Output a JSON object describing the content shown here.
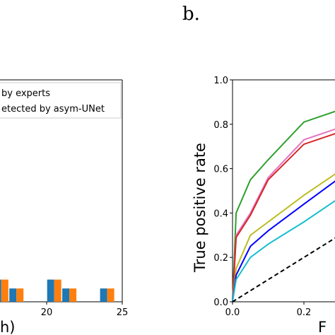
{
  "panel_label": "b.",
  "chart_data": [
    {
      "type": "bar",
      "xlabel_visible": "h)",
      "x_ticks": [
        "20",
        "25"
      ],
      "x_range": [
        0,
        25
      ],
      "legend": {
        "placement": "top-right",
        "entries": [
          "by experts",
          "etected by asym-UNet"
        ],
        "colors": [
          "#1f77b4",
          "#ff7f0e"
        ]
      },
      "series": [
        {
          "name": "by experts",
          "color": "#1f77b4"
        },
        {
          "name": "etected by asym-UNet",
          "color": "#ff7f0e"
        }
      ],
      "points": [
        {
          "x": 17,
          "expert": 0.1,
          "asym": 0.1
        },
        {
          "x": 18,
          "expert": 0.06,
          "asym": 0.06
        },
        {
          "x": 20.5,
          "expert": 0.1,
          "asym": 0.1
        },
        {
          "x": 21.5,
          "expert": 0.06,
          "asym": 0.06
        },
        {
          "x": 24,
          "expert": 0.06,
          "asym": 0.06
        }
      ]
    },
    {
      "type": "line",
      "ylabel": "True positive rate",
      "xlabel_visible": "F",
      "x_ticks": [
        "0.0",
        "0.2"
      ],
      "y_ticks": [
        "0.0",
        "0.2",
        "0.4",
        "0.6",
        "0.8",
        "1.0"
      ],
      "xlim": [
        0,
        1
      ],
      "ylim": [
        0,
        1
      ],
      "series": [
        {
          "color": "#2ca02c",
          "x": [
            0,
            0.01,
            0.05,
            0.1,
            0.2,
            0.31
          ],
          "y": [
            0,
            0.4,
            0.55,
            0.64,
            0.81,
            0.87
          ]
        },
        {
          "color": "#e377c2",
          "x": [
            0,
            0.01,
            0.05,
            0.1,
            0.2,
            0.31
          ],
          "y": [
            0,
            0.3,
            0.4,
            0.56,
            0.73,
            0.79
          ]
        },
        {
          "color": "#d62728",
          "x": [
            0,
            0.01,
            0.05,
            0.1,
            0.2,
            0.31
          ],
          "y": [
            0,
            0.29,
            0.39,
            0.55,
            0.71,
            0.77
          ]
        },
        {
          "color": "#bcbd22",
          "x": [
            0,
            0.01,
            0.05,
            0.1,
            0.2,
            0.31
          ],
          "y": [
            0,
            0.15,
            0.3,
            0.36,
            0.48,
            0.6
          ]
        },
        {
          "color": "#0000ff",
          "x": [
            0,
            0.01,
            0.05,
            0.1,
            0.2,
            0.31
          ],
          "y": [
            0,
            0.12,
            0.25,
            0.32,
            0.44,
            0.57
          ]
        },
        {
          "color": "#17becf",
          "x": [
            0,
            0.01,
            0.05,
            0.1,
            0.2,
            0.31
          ],
          "y": [
            0,
            0.1,
            0.2,
            0.26,
            0.36,
            0.48
          ]
        },
        {
          "color": "#000000",
          "dashed": true,
          "x": [
            0,
            0.31
          ],
          "y": [
            0,
            0.31
          ]
        }
      ]
    }
  ]
}
